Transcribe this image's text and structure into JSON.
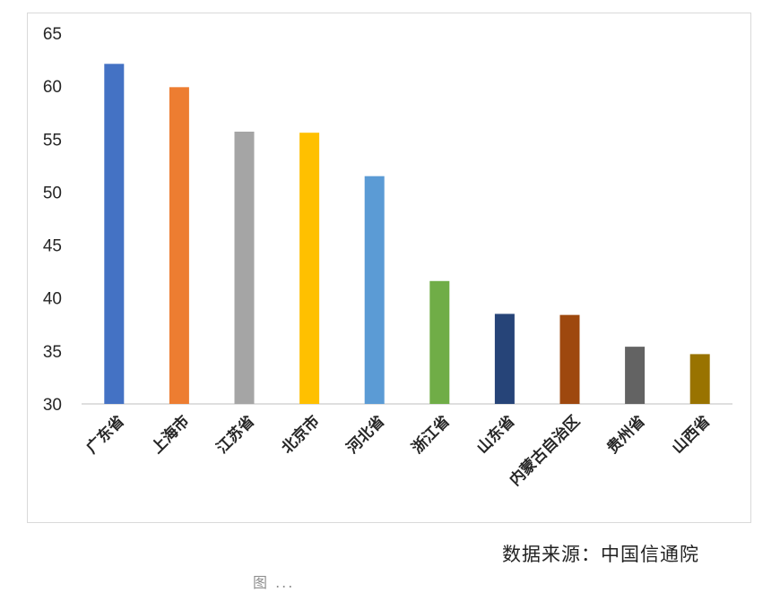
{
  "chart_data": {
    "type": "bar",
    "title": "",
    "xlabel": "",
    "ylabel": "",
    "ylim": [
      30,
      65
    ],
    "yticks": [
      30,
      35,
      40,
      45,
      50,
      55,
      60,
      65
    ],
    "grid": false,
    "legend": "none",
    "categories": [
      "广东省",
      "上海市",
      "江苏省",
      "北京市",
      "河北省",
      "浙江省",
      "山东省",
      "内蒙古自治区",
      "贵州省",
      "山西省"
    ],
    "values": [
      62.1,
      59.9,
      55.7,
      55.6,
      51.5,
      41.6,
      38.5,
      38.4,
      35.4,
      34.7
    ],
    "colors": [
      "#4472c4",
      "#ed7d31",
      "#a5a5a5",
      "#ffc000",
      "#5b9bd5",
      "#70ad47",
      "#264478",
      "#9e480e",
      "#636363",
      "#997300"
    ]
  },
  "source_note": "数据来源：中国信通院",
  "caption_cutoff": "图 ..."
}
